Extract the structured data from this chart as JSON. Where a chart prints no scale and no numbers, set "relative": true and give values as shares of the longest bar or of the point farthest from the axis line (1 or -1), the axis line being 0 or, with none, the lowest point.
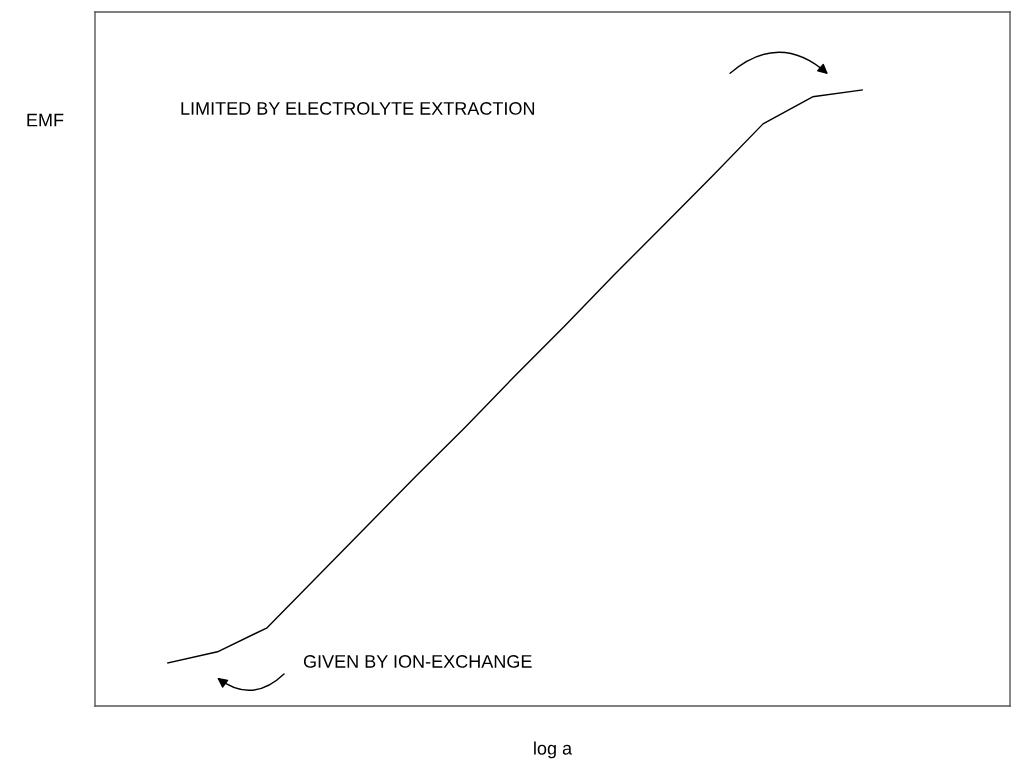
{
  "chart_data": {
    "type": "line",
    "relative": true,
    "xlabel": "log a",
    "ylabel": "EMF",
    "categories": [
      null,
      null,
      null,
      null,
      null,
      null,
      null,
      null,
      null,
      null,
      null,
      null,
      null,
      null,
      null
    ],
    "series": [
      {
        "color": "#000000",
        "values": [
          0.07,
          0.088,
          0.127,
          0.209,
          0.291,
          0.373,
          0.453,
          0.536,
          0.617,
          0.7,
          0.781,
          0.862,
          0.945,
          0.989,
          1
        ]
      }
    ],
    "annotations": [
      "LIMITED BY ELECTROLYTE EXTRACTION",
      "GIVEN BY ION-EXCHANGE"
    ],
    "grid": false,
    "legend": false,
    "marker": "none",
    "line_style": "solid"
  }
}
